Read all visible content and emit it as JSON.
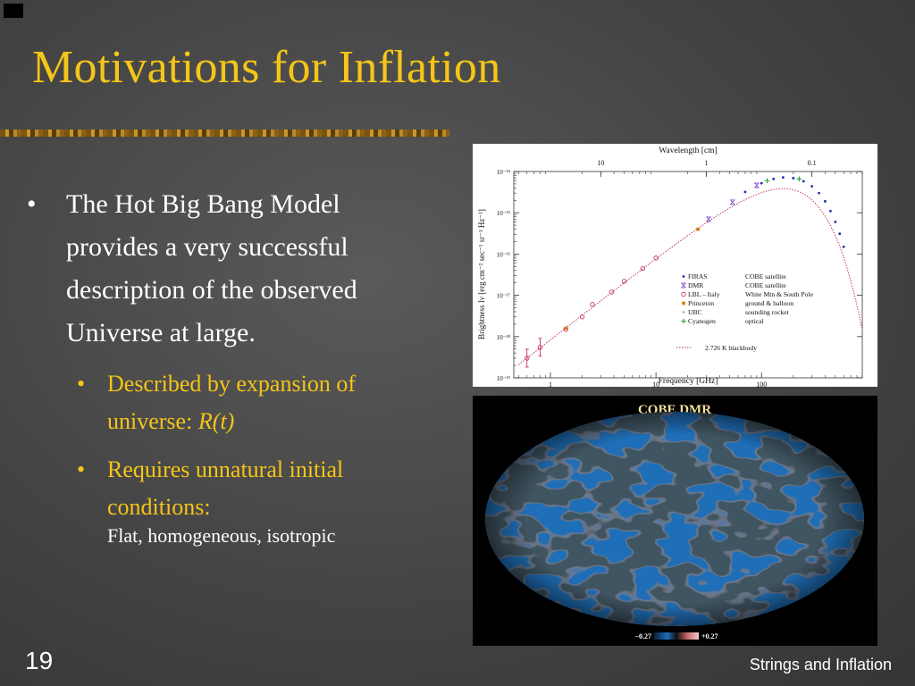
{
  "slide": {
    "title": "Motivations for Inflation",
    "number": "19",
    "footer": "Strings and Inflation"
  },
  "bullets": {
    "main": {
      "marker": "•",
      "text": "The Hot Big Bang Model provides a very successful description of the observed Universe at large."
    },
    "sub": [
      {
        "marker": "•",
        "text": "Described by expansion of universe: ",
        "italic": "R(t)"
      },
      {
        "marker": "•",
        "text": "Requires unnatural initial conditions:"
      }
    ],
    "subsub": "Flat, homogeneous, isotropic"
  },
  "chart_data": {
    "type": "scatter",
    "title": "",
    "top_axis_label": "Wavelength [cm]",
    "top_ticks": [
      "10",
      "1",
      "0.1"
    ],
    "xlabel": "Frequency [GHz]",
    "x_ticks": [
      "1",
      "10",
      "100"
    ],
    "ylabel": "Brightness  Iν [erg cm⁻² sec⁻¹ sr⁻¹ Hz⁻¹]",
    "y_ticks": [
      "10⁻¹⁴",
      "10⁻¹⁵",
      "10⁻¹⁶",
      "10⁻¹⁷",
      "10⁻¹⁸",
      "10⁻¹⁹"
    ],
    "xscale": "log",
    "yscale": "log",
    "xlim": [
      0.45,
      900
    ],
    "ylim": [
      1e-19,
      1e-14
    ],
    "legend_position": "bottom-right",
    "legend": [
      {
        "name": "FIRAS",
        "desc": "COBE satellite",
        "color": "#1a2fb8",
        "marker": "dot"
      },
      {
        "name": "DMR",
        "desc": "COBE satellite",
        "color": "#7a3fd0",
        "marker": "hourglass"
      },
      {
        "name": "LBL – Italy",
        "desc": "White Mtn & South Pole",
        "color": "#c02060",
        "marker": "circle"
      },
      {
        "name": "Princeton",
        "desc": "ground & balloon",
        "color": "#e07a10",
        "marker": "square"
      },
      {
        "name": "UBC",
        "desc": "sounding rocket",
        "color": "#b0b0b0",
        "marker": "dot"
      },
      {
        "name": "Cyanogen",
        "desc": "optical",
        "color": "#20a040",
        "marker": "plus"
      },
      {
        "name": "2.726 K blackbody",
        "desc": "",
        "color": "#c02060",
        "marker": "dotted-line"
      }
    ],
    "series": [
      {
        "name": "LBL – Italy",
        "x": [
          0.6,
          0.8,
          1.4,
          2,
          2.5,
          3.8,
          5,
          7.5,
          10
        ],
        "y": [
          3e-19,
          5.5e-19,
          1.5e-18,
          3e-18,
          6e-18,
          1.2e-17,
          2.2e-17,
          4.5e-17,
          8e-17
        ]
      },
      {
        "name": "Princeton",
        "x": [
          1.4,
          25
        ],
        "y": [
          1.6e-18,
          4e-16
        ]
      },
      {
        "name": "DMR",
        "x": [
          31.5,
          53,
          90
        ],
        "y": [
          7e-16,
          1.8e-15,
          4.6e-15
        ]
      },
      {
        "name": "FIRAS",
        "x": [
          70,
          100,
          130,
          160,
          200,
          250,
          300,
          350,
          400,
          450,
          500,
          550,
          600
        ],
        "y": [
          3.2e-15,
          5.2e-15,
          6.6e-15,
          7.2e-15,
          6.9e-15,
          5.8e-15,
          4.4e-15,
          3e-15,
          1.9e-15,
          1.1e-15,
          6e-16,
          3.1e-16,
          1.5e-16
        ]
      },
      {
        "name": "Cyanogen",
        "x": [
          113,
          227
        ],
        "y": [
          6e-15,
          6.6e-15
        ]
      }
    ],
    "blackbody_temperature_K": 2.726
  },
  "cmb_map": {
    "label": "COBE DMR",
    "scale_min": "−0.27",
    "scale_max": "+0.27"
  },
  "colors": {
    "title": "#f5c518",
    "sub_bullets": "#f5c518",
    "text": "#ffffff",
    "map_warm": "#e6a6a2",
    "map_cold": "#1f6fb8"
  }
}
